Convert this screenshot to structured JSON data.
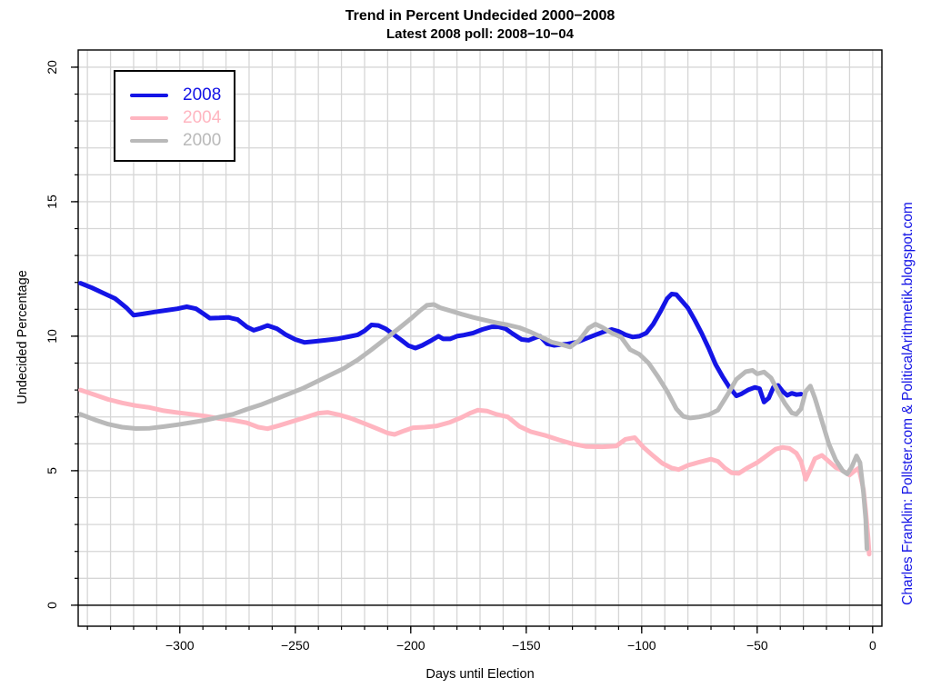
{
  "header": {
    "title": "Trend in Percent Undecided 2000−2008",
    "subtitle": "Latest 2008 poll: 2008−10−04"
  },
  "attribution": "Charles Franklin: Pollster.com & PoliticalArithmetik.blogspot.com",
  "colors": {
    "blue": "#1414E6",
    "pink": "#FFB5C0",
    "gray": "#B9B9B9",
    "grid": "#D6D6D6",
    "axis": "#000000",
    "attribution_blue": "#1414E6"
  },
  "chart_data": {
    "type": "line",
    "title": "Trend in Percent Undecided 2000−2008",
    "subtitle": "Latest 2008 poll: 2008−10−04",
    "xlabel": "Days until Election",
    "ylabel": "Undecided Percentage",
    "xlim": [
      -344,
      4
    ],
    "ylim": [
      -0.78,
      20.64
    ],
    "grid": true,
    "x_major_ticks": [
      -300,
      -250,
      -200,
      -150,
      -100,
      -50,
      0
    ],
    "x_major_tick_labels": [
      "−300",
      "−250",
      "−200",
      "−150",
      "−100",
      "−50",
      "0"
    ],
    "x_minor_tick_step": 10,
    "x_minor_tick_range": [
      -340,
      0
    ],
    "y_major_ticks": [
      0,
      5,
      10,
      15,
      20
    ],
    "y_major_tick_labels": [
      "0",
      "5",
      "10",
      "15",
      "20"
    ],
    "y_minor_tick_step": 1,
    "y_minor_tick_range": [
      0,
      20
    ],
    "zero_line_y": 0,
    "legend": {
      "position": "top-left",
      "items": [
        {
          "label": "2008",
          "color_key": "blue"
        },
        {
          "label": "2004",
          "color_key": "pink"
        },
        {
          "label": "2000",
          "color_key": "gray"
        }
      ]
    },
    "series": [
      {
        "name": "2008",
        "color_key": "blue",
        "points": [
          [
            -343,
            11.97
          ],
          [
            -338,
            11.8
          ],
          [
            -333,
            11.6
          ],
          [
            -328,
            11.4
          ],
          [
            -323,
            11.05
          ],
          [
            -320,
            10.78
          ],
          [
            -316,
            10.83
          ],
          [
            -311,
            10.9
          ],
          [
            -306,
            10.96
          ],
          [
            -301,
            11.02
          ],
          [
            -297,
            11.1
          ],
          [
            -293,
            11.02
          ],
          [
            -290,
            10.85
          ],
          [
            -287,
            10.67
          ],
          [
            -283,
            10.68
          ],
          [
            -279,
            10.7
          ],
          [
            -275,
            10.62
          ],
          [
            -271,
            10.35
          ],
          [
            -268,
            10.22
          ],
          [
            -265,
            10.3
          ],
          [
            -262,
            10.4
          ],
          [
            -258,
            10.28
          ],
          [
            -254,
            10.05
          ],
          [
            -250,
            9.88
          ],
          [
            -246,
            9.77
          ],
          [
            -242,
            9.8
          ],
          [
            -237,
            9.85
          ],
          [
            -232,
            9.9
          ],
          [
            -227,
            9.98
          ],
          [
            -223,
            10.05
          ],
          [
            -220,
            10.2
          ],
          [
            -217,
            10.42
          ],
          [
            -214,
            10.4
          ],
          [
            -211,
            10.28
          ],
          [
            -208,
            10.1
          ],
          [
            -204,
            9.85
          ],
          [
            -201,
            9.65
          ],
          [
            -198,
            9.56
          ],
          [
            -195,
            9.66
          ],
          [
            -191,
            9.85
          ],
          [
            -188,
            10.0
          ],
          [
            -186,
            9.9
          ],
          [
            -183,
            9.9
          ],
          [
            -180,
            10.0
          ],
          [
            -177,
            10.04
          ],
          [
            -173,
            10.12
          ],
          [
            -169,
            10.25
          ],
          [
            -165,
            10.35
          ],
          [
            -162,
            10.35
          ],
          [
            -159,
            10.28
          ],
          [
            -156,
            10.1
          ],
          [
            -152,
            9.88
          ],
          [
            -149,
            9.85
          ],
          [
            -146,
            9.95
          ],
          [
            -144,
            10.0
          ],
          [
            -141,
            9.72
          ],
          [
            -138,
            9.66
          ],
          [
            -135,
            9.69
          ],
          [
            -132,
            9.71
          ],
          [
            -128,
            9.78
          ],
          [
            -124,
            9.92
          ],
          [
            -120,
            10.05
          ],
          [
            -116,
            10.18
          ],
          [
            -113,
            10.25
          ],
          [
            -110,
            10.18
          ],
          [
            -107,
            10.05
          ],
          [
            -104,
            9.97
          ],
          [
            -101,
            10.0
          ],
          [
            -98,
            10.12
          ],
          [
            -95,
            10.45
          ],
          [
            -92,
            10.9
          ],
          [
            -89,
            11.4
          ],
          [
            -87,
            11.57
          ],
          [
            -85,
            11.55
          ],
          [
            -83,
            11.35
          ],
          [
            -80,
            11.05
          ],
          [
            -77,
            10.6
          ],
          [
            -74,
            10.1
          ],
          [
            -71,
            9.55
          ],
          [
            -68,
            8.95
          ],
          [
            -65,
            8.5
          ],
          [
            -62,
            8.1
          ],
          [
            -59,
            7.78
          ],
          [
            -57,
            7.85
          ],
          [
            -54,
            8.0
          ],
          [
            -51,
            8.1
          ],
          [
            -49,
            8.05
          ],
          [
            -47,
            7.55
          ],
          [
            -45,
            7.7
          ],
          [
            -43,
            8.1
          ],
          [
            -41,
            8.17
          ],
          [
            -39,
            7.95
          ],
          [
            -37,
            7.8
          ],
          [
            -35,
            7.88
          ],
          [
            -33,
            7.83
          ],
          [
            -31,
            7.85
          ]
        ]
      },
      {
        "name": "2004",
        "color_key": "pink",
        "points": [
          [
            -343,
            8.0
          ],
          [
            -337,
            7.83
          ],
          [
            -331,
            7.65
          ],
          [
            -325,
            7.52
          ],
          [
            -319,
            7.42
          ],
          [
            -313,
            7.35
          ],
          [
            -307,
            7.23
          ],
          [
            -301,
            7.16
          ],
          [
            -295,
            7.1
          ],
          [
            -289,
            7.03
          ],
          [
            -283,
            6.94
          ],
          [
            -277,
            6.88
          ],
          [
            -271,
            6.78
          ],
          [
            -266,
            6.62
          ],
          [
            -262,
            6.56
          ],
          [
            -257,
            6.68
          ],
          [
            -251,
            6.84
          ],
          [
            -245,
            7.0
          ],
          [
            -240,
            7.14
          ],
          [
            -236,
            7.17
          ],
          [
            -231,
            7.08
          ],
          [
            -226,
            6.95
          ],
          [
            -220,
            6.75
          ],
          [
            -215,
            6.58
          ],
          [
            -210,
            6.4
          ],
          [
            -207,
            6.35
          ],
          [
            -203,
            6.48
          ],
          [
            -199,
            6.6
          ],
          [
            -194,
            6.62
          ],
          [
            -189,
            6.66
          ],
          [
            -183,
            6.8
          ],
          [
            -178,
            6.98
          ],
          [
            -174,
            7.15
          ],
          [
            -171,
            7.25
          ],
          [
            -167,
            7.22
          ],
          [
            -163,
            7.1
          ],
          [
            -158,
            7.0
          ],
          [
            -153,
            6.65
          ],
          [
            -148,
            6.45
          ],
          [
            -142,
            6.32
          ],
          [
            -136,
            6.15
          ],
          [
            -130,
            6.0
          ],
          [
            -124,
            5.9
          ],
          [
            -117,
            5.89
          ],
          [
            -111,
            5.92
          ],
          [
            -107,
            6.17
          ],
          [
            -103,
            6.23
          ],
          [
            -99,
            5.85
          ],
          [
            -95,
            5.55
          ],
          [
            -91,
            5.27
          ],
          [
            -87,
            5.1
          ],
          [
            -84,
            5.04
          ],
          [
            -80,
            5.2
          ],
          [
            -75,
            5.32
          ],
          [
            -70,
            5.43
          ],
          [
            -67,
            5.35
          ],
          [
            -64,
            5.1
          ],
          [
            -61,
            4.92
          ],
          [
            -58,
            4.9
          ],
          [
            -54,
            5.12
          ],
          [
            -50,
            5.3
          ],
          [
            -46,
            5.55
          ],
          [
            -42,
            5.8
          ],
          [
            -39,
            5.87
          ],
          [
            -36,
            5.83
          ],
          [
            -33,
            5.65
          ],
          [
            -31,
            5.35
          ],
          [
            -29,
            4.68
          ],
          [
            -27,
            5.05
          ],
          [
            -25,
            5.45
          ],
          [
            -22,
            5.57
          ],
          [
            -19,
            5.35
          ],
          [
            -16,
            5.12
          ],
          [
            -13,
            5.0
          ],
          [
            -10,
            4.84
          ],
          [
            -8,
            4.98
          ],
          [
            -6,
            5.1
          ],
          [
            -4,
            4.3
          ],
          [
            -3,
            3.5
          ],
          [
            -2,
            2.5
          ],
          [
            -1.5,
            1.9
          ]
        ]
      },
      {
        "name": "2000",
        "color_key": "gray",
        "points": [
          [
            -343,
            7.1
          ],
          [
            -337,
            6.9
          ],
          [
            -331,
            6.73
          ],
          [
            -325,
            6.62
          ],
          [
            -319,
            6.57
          ],
          [
            -313,
            6.58
          ],
          [
            -307,
            6.64
          ],
          [
            -301,
            6.71
          ],
          [
            -295,
            6.79
          ],
          [
            -289,
            6.88
          ],
          [
            -283,
            6.99
          ],
          [
            -277,
            7.1
          ],
          [
            -271,
            7.28
          ],
          [
            -265,
            7.45
          ],
          [
            -259,
            7.65
          ],
          [
            -253,
            7.85
          ],
          [
            -247,
            8.05
          ],
          [
            -241,
            8.3
          ],
          [
            -235,
            8.55
          ],
          [
            -229,
            8.8
          ],
          [
            -223,
            9.12
          ],
          [
            -217,
            9.5
          ],
          [
            -211,
            9.9
          ],
          [
            -205,
            10.3
          ],
          [
            -200,
            10.65
          ],
          [
            -196,
            10.95
          ],
          [
            -193,
            11.15
          ],
          [
            -190,
            11.18
          ],
          [
            -187,
            11.05
          ],
          [
            -183,
            10.95
          ],
          [
            -178,
            10.82
          ],
          [
            -173,
            10.7
          ],
          [
            -168,
            10.6
          ],
          [
            -163,
            10.5
          ],
          [
            -158,
            10.42
          ],
          [
            -153,
            10.32
          ],
          [
            -148,
            10.15
          ],
          [
            -143,
            9.95
          ],
          [
            -139,
            9.78
          ],
          [
            -135,
            9.7
          ],
          [
            -131,
            9.6
          ],
          [
            -127,
            9.85
          ],
          [
            -123,
            10.3
          ],
          [
            -120,
            10.45
          ],
          [
            -117,
            10.33
          ],
          [
            -113,
            10.12
          ],
          [
            -109,
            9.97
          ],
          [
            -105,
            9.5
          ],
          [
            -101,
            9.33
          ],
          [
            -97,
            9.0
          ],
          [
            -93,
            8.5
          ],
          [
            -89,
            7.95
          ],
          [
            -85,
            7.3
          ],
          [
            -82,
            7.02
          ],
          [
            -79,
            6.96
          ],
          [
            -75,
            7.0
          ],
          [
            -71,
            7.08
          ],
          [
            -67,
            7.25
          ],
          [
            -63,
            7.8
          ],
          [
            -59,
            8.4
          ],
          [
            -55,
            8.68
          ],
          [
            -52,
            8.73
          ],
          [
            -50,
            8.6
          ],
          [
            -47,
            8.67
          ],
          [
            -44,
            8.45
          ],
          [
            -41,
            7.95
          ],
          [
            -38,
            7.5
          ],
          [
            -35,
            7.15
          ],
          [
            -33,
            7.1
          ],
          [
            -31,
            7.3
          ],
          [
            -29,
            7.95
          ],
          [
            -27,
            8.15
          ],
          [
            -25,
            7.7
          ],
          [
            -22,
            6.85
          ],
          [
            -19,
            6.0
          ],
          [
            -16,
            5.4
          ],
          [
            -13,
            5.0
          ],
          [
            -11,
            4.88
          ],
          [
            -9,
            5.15
          ],
          [
            -7,
            5.55
          ],
          [
            -5.5,
            5.3
          ],
          [
            -4,
            4.2
          ],
          [
            -3,
            3.2
          ],
          [
            -2.5,
            2.1
          ]
        ]
      }
    ]
  }
}
